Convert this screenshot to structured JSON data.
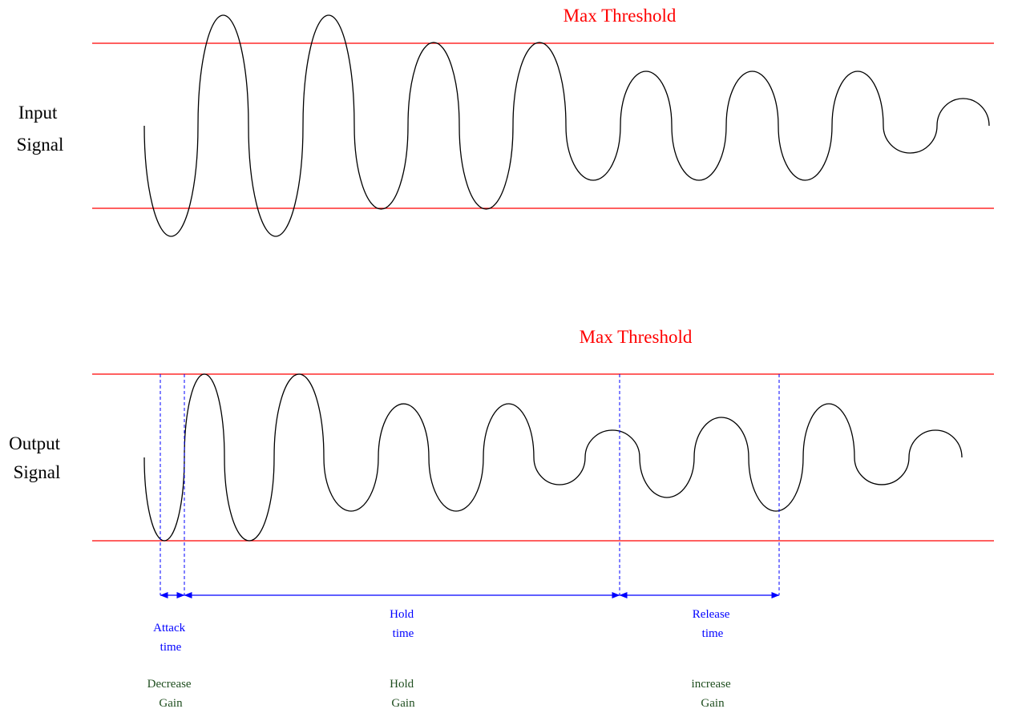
{
  "input_panel": {
    "label_lines": [
      "Input",
      "Signal"
    ],
    "threshold_label": "Max Threshold"
  },
  "output_panel": {
    "label_lines": [
      "Output",
      "Signal"
    ],
    "threshold_label": "Max Threshold"
  },
  "timing": {
    "attack": {
      "lines": [
        "Attack",
        "time"
      ],
      "gain": [
        "Decrease",
        "Gain"
      ]
    },
    "hold": {
      "lines": [
        "Hold",
        "time"
      ],
      "gain": [
        "Hold",
        "Gain"
      ]
    },
    "release": {
      "lines": [
        "Release",
        "time"
      ],
      "gain": [
        "increase",
        "Gain"
      ]
    }
  },
  "colors": {
    "threshold": "#ff0000",
    "signal": "#000000",
    "timing": "#0000ff",
    "gain": "#1f4e1f",
    "label": "#000000"
  }
}
